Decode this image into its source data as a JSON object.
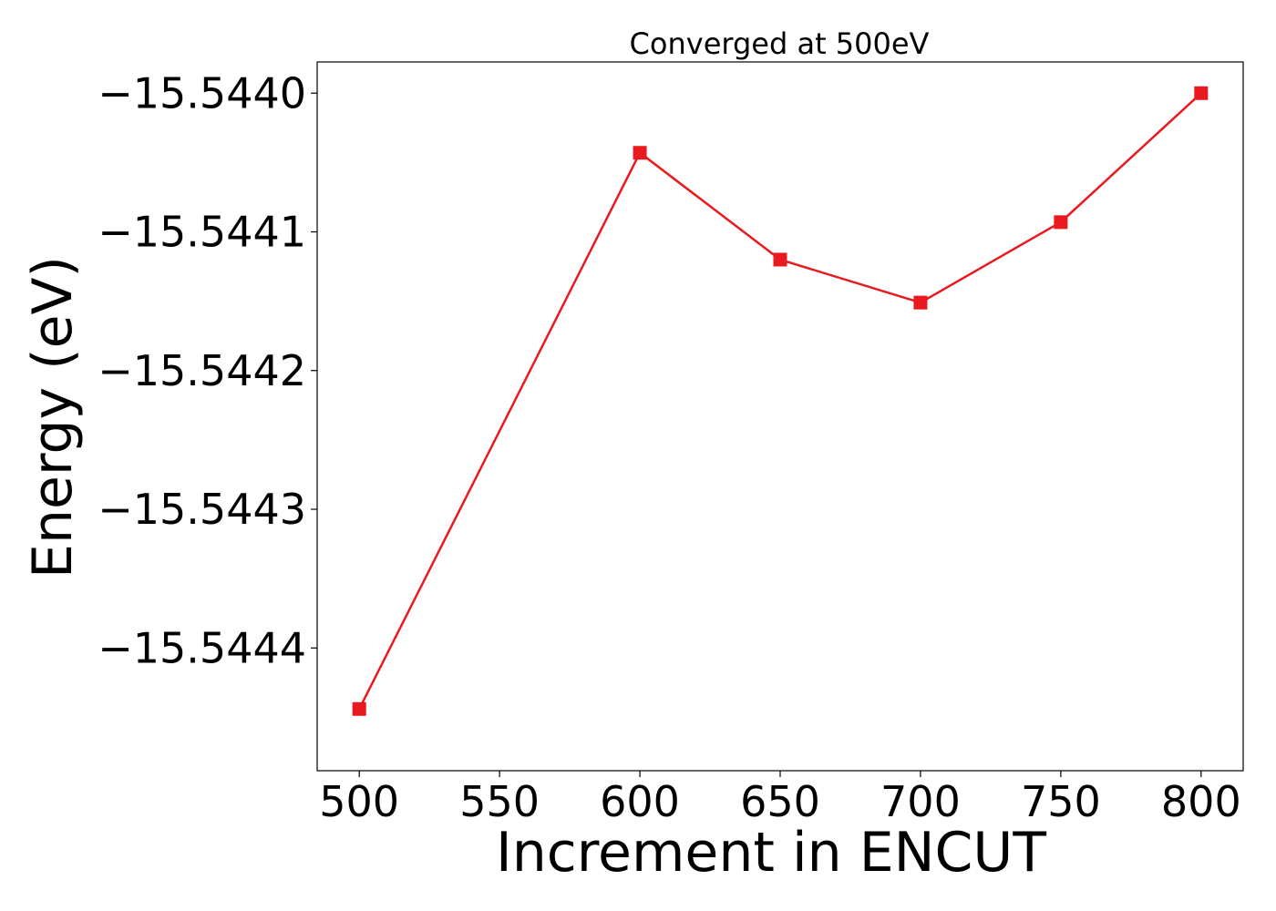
{
  "chart_data": {
    "type": "line",
    "title": "Converged at 500eV",
    "xlabel": "Increment in ENCUT",
    "ylabel": "Energy (eV)",
    "x": [
      500,
      600,
      650,
      700,
      750,
      800
    ],
    "series": [
      {
        "values": [
          -15.544444,
          -15.544043,
          -15.54412,
          -15.544151,
          -15.544093,
          -15.544
        ],
        "color": "#e8191f",
        "marker": "square"
      }
    ],
    "xticks": [
      500,
      550,
      600,
      650,
      700,
      750,
      800
    ],
    "xtick_labels": [
      "500",
      "550",
      "600",
      "650",
      "700",
      "750",
      "800"
    ],
    "yticks": [
      -15.5444,
      -15.5443,
      -15.5442,
      -15.5441,
      -15.544
    ],
    "ytick_labels": [
      "−15.5444",
      "−15.5443",
      "−15.5442",
      "−15.5441",
      "−15.5440"
    ],
    "xlim": [
      485,
      815
    ],
    "ylim": [
      -15.5444885,
      -15.5439775
    ],
    "grid": false,
    "legend": "none"
  }
}
